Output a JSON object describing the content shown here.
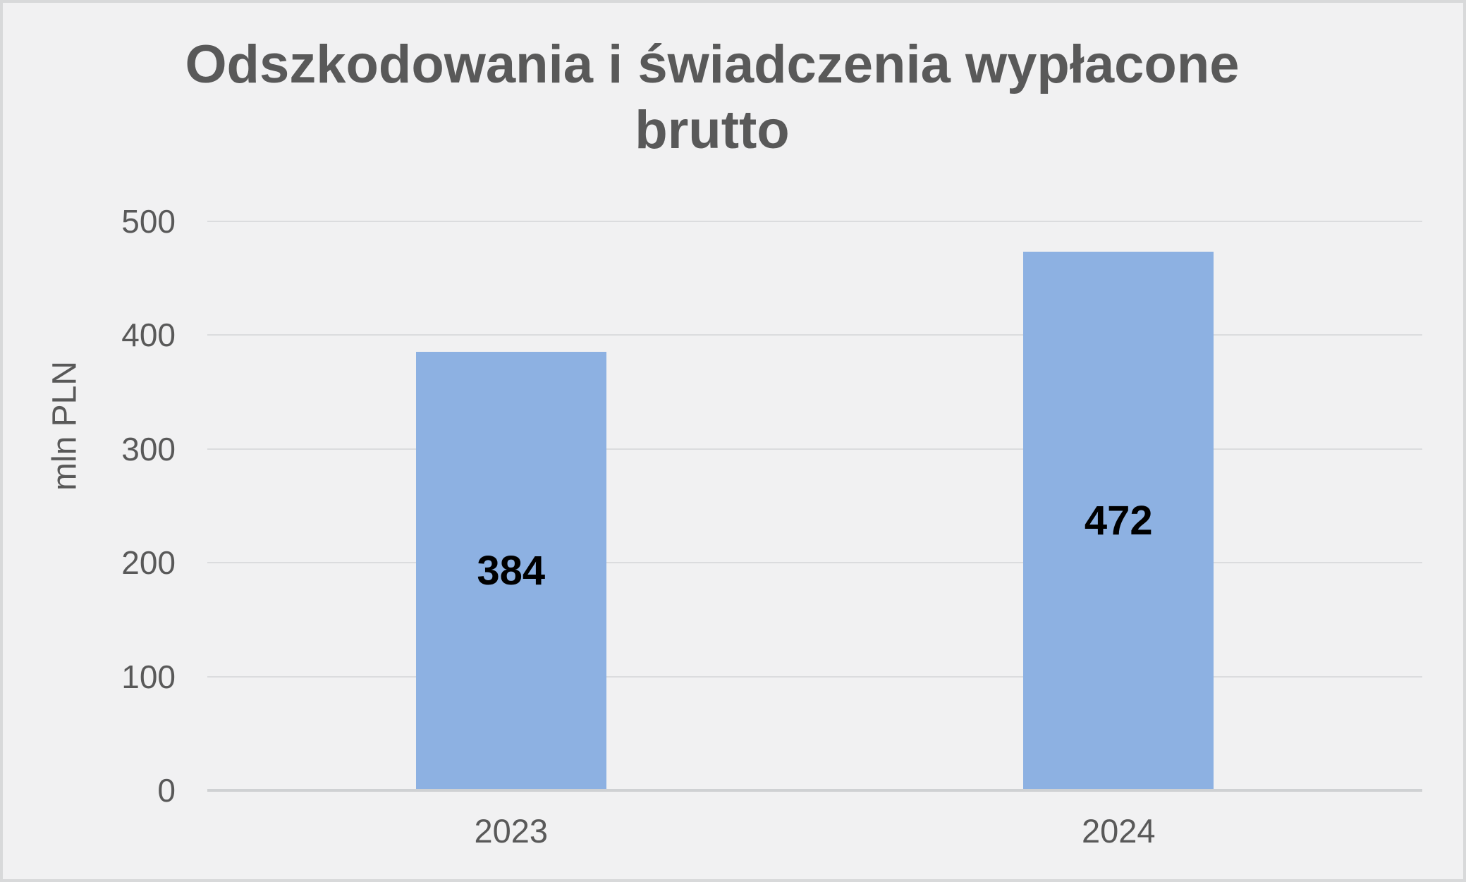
{
  "chart": {
    "title": "Odszkodowania i świadczenia wypłacone brutto",
    "title_lines": [
      "Odszkodowania i świadczenia wypłacone",
      "brutto"
    ],
    "ylabel": "mln PLN"
  },
  "chart_data": {
    "type": "bar",
    "categories": [
      "2023",
      "2024"
    ],
    "values": [
      384,
      472
    ],
    "data_labels": [
      "384",
      "472"
    ],
    "title": "Odszkodowania i świadczenia wypłacone brutto",
    "xlabel": "",
    "ylabel": "mln PLN",
    "ylim": [
      0,
      500
    ],
    "yticks": [
      0,
      100,
      200,
      300,
      400,
      500
    ],
    "grid": true,
    "legend": "none",
    "colors": {
      "bar": "#8DB1E2",
      "data_label": "#000000",
      "axis_text": "#595959",
      "title_text": "#595959",
      "gridline": "#DBDCDE",
      "baseline": "#CFD1D3",
      "background": "#F1F1F2",
      "frame_border": "#D8D9DA"
    }
  }
}
